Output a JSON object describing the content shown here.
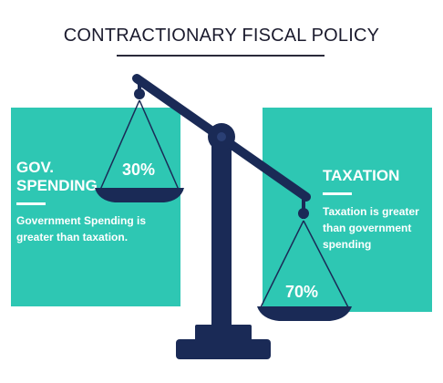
{
  "title": "CONTRACTIONARY FISCAL POLICY",
  "left_panel": {
    "heading_line1": "GOV.",
    "heading_line2": "SPENDING",
    "description_line1": "Government Spending is",
    "description_line2": "greater than taxation.",
    "percent": "30%"
  },
  "right_panel": {
    "heading": "TAXATION",
    "description_line1": "Taxation is greater",
    "description_line2": "than government",
    "description_line3": "spending",
    "percent": "70%"
  },
  "colors": {
    "panel": "#2ec7b3",
    "scale": "#1a2a56",
    "text": "#ffffff"
  }
}
